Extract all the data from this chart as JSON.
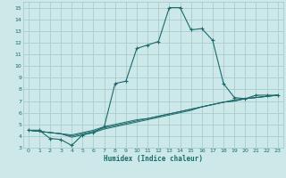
{
  "background_color": "#cce8e8",
  "grid_color": "#aacccc",
  "line_color": "#1a6b6b",
  "xlabel": "Humidex (Indice chaleur)",
  "xlim": [
    -0.5,
    23.5
  ],
  "ylim": [
    3,
    15.5
  ],
  "xticks": [
    0,
    1,
    2,
    3,
    4,
    5,
    6,
    7,
    8,
    9,
    10,
    11,
    12,
    13,
    14,
    15,
    16,
    17,
    18,
    19,
    20,
    21,
    22,
    23
  ],
  "yticks": [
    3,
    4,
    5,
    6,
    7,
    8,
    9,
    10,
    11,
    12,
    13,
    14,
    15
  ],
  "main_series_x": [
    0,
    1,
    2,
    3,
    4,
    5,
    6,
    7,
    8,
    9,
    10,
    11,
    12,
    13,
    14,
    15,
    16,
    17,
    18,
    19,
    20,
    21,
    22,
    23
  ],
  "main_series_y": [
    4.5,
    4.5,
    3.8,
    3.7,
    3.2,
    4.1,
    4.3,
    4.8,
    8.5,
    8.7,
    11.5,
    11.8,
    12.1,
    15.0,
    15.0,
    13.1,
    13.2,
    12.2,
    8.5,
    7.3,
    7.2,
    7.5,
    7.5,
    7.5
  ],
  "linear_series": [
    {
      "x": [
        0,
        1,
        2,
        3,
        4,
        5,
        6,
        7,
        8,
        9,
        10,
        11,
        12,
        13,
        14,
        15,
        16,
        17,
        18,
        19,
        20,
        21,
        22,
        23
      ],
      "y": [
        4.5,
        4.4,
        4.3,
        4.2,
        4.1,
        4.3,
        4.5,
        4.8,
        5.0,
        5.2,
        5.4,
        5.5,
        5.7,
        5.9,
        6.1,
        6.3,
        6.5,
        6.7,
        6.9,
        7.1,
        7.2,
        7.3,
        7.4,
        7.5
      ]
    },
    {
      "x": [
        0,
        1,
        2,
        3,
        4,
        5,
        6,
        7,
        8,
        9,
        10,
        11,
        12,
        13,
        14,
        15,
        16,
        17,
        18,
        19,
        20,
        21,
        22,
        23
      ],
      "y": [
        4.5,
        4.4,
        4.3,
        4.2,
        4.0,
        4.2,
        4.4,
        4.7,
        4.9,
        5.1,
        5.3,
        5.5,
        5.7,
        5.9,
        6.1,
        6.3,
        6.5,
        6.7,
        6.9,
        7.0,
        7.2,
        7.3,
        7.4,
        7.5
      ]
    },
    {
      "x": [
        0,
        1,
        2,
        3,
        4,
        5,
        6,
        7,
        8,
        9,
        10,
        11,
        12,
        13,
        14,
        15,
        16,
        17,
        18,
        19,
        20,
        21,
        22,
        23
      ],
      "y": [
        4.5,
        4.4,
        4.3,
        4.2,
        3.9,
        4.1,
        4.3,
        4.6,
        4.8,
        5.0,
        5.2,
        5.4,
        5.6,
        5.8,
        6.0,
        6.2,
        6.5,
        6.7,
        6.9,
        7.0,
        7.2,
        7.3,
        7.4,
        7.5
      ]
    }
  ]
}
